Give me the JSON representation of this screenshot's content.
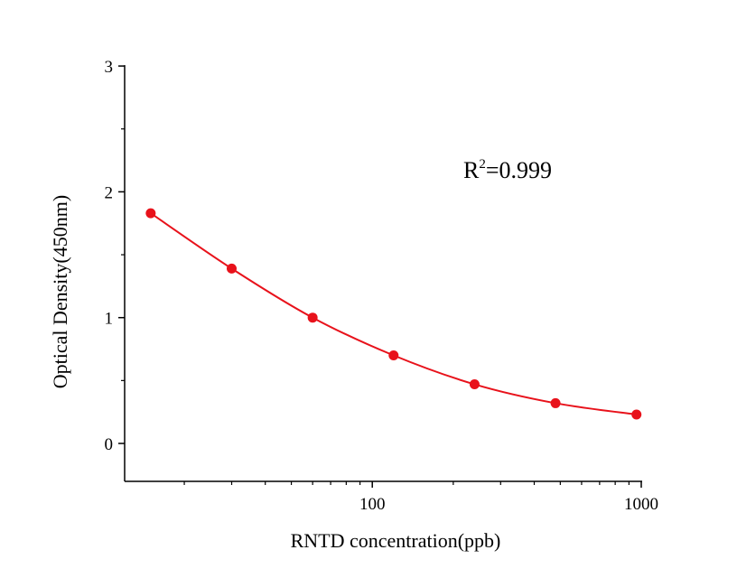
{
  "chart_data": {
    "type": "scatter",
    "xlabel": "RNTD concentration(ppb)",
    "ylabel": "Optical Density(450nm)",
    "xscale": "log",
    "xlim": [
      12,
      1000
    ],
    "ylim": [
      -0.3,
      3
    ],
    "x_ticks": [
      "100",
      "1000"
    ],
    "y_ticks": [
      "0",
      "1",
      "2",
      "3"
    ],
    "grid": false,
    "annotation": {
      "base": "R",
      "sup": "2",
      "rest": "=0.999"
    },
    "series": [
      {
        "points": [
          {
            "x": 15,
            "y": 1.83
          },
          {
            "x": 30,
            "y": 1.39
          },
          {
            "x": 60,
            "y": 1.0
          },
          {
            "x": 120,
            "y": 0.7
          },
          {
            "x": 240,
            "y": 0.47
          },
          {
            "x": 480,
            "y": 0.32
          },
          {
            "x": 960,
            "y": 0.23
          }
        ],
        "fit_curve": true,
        "color": "#e8121b"
      }
    ]
  }
}
